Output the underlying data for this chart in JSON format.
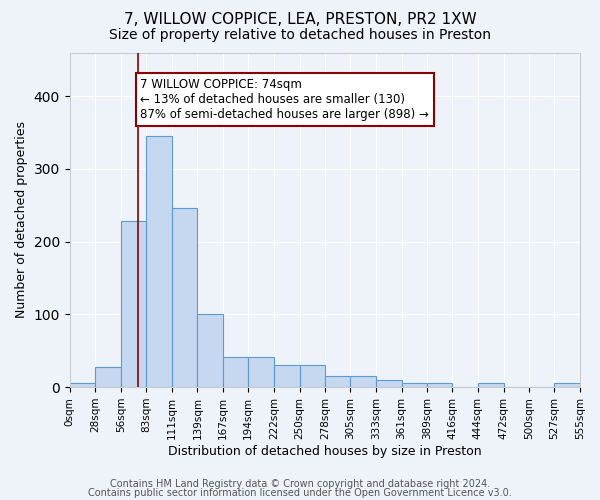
{
  "title1": "7, WILLOW COPPICE, LEA, PRESTON, PR2 1XW",
  "title2": "Size of property relative to detached houses in Preston",
  "xlabel": "Distribution of detached houses by size in Preston",
  "ylabel": "Number of detached properties",
  "bin_edges": [
    0,
    28,
    56,
    83,
    111,
    139,
    167,
    194,
    222,
    250,
    278,
    305,
    333,
    361,
    389,
    416,
    444,
    472,
    500,
    527,
    555
  ],
  "bar_heights": [
    5,
    28,
    228,
    345,
    246,
    100,
    42,
    42,
    30,
    30,
    15,
    15,
    10,
    5,
    5,
    0,
    5,
    0,
    0,
    5
  ],
  "bar_color": "#c5d8f0",
  "bar_edge_color": "#5b9bd5",
  "property_size": 74,
  "vline_color": "#8b0000",
  "annotation_line1": "7 WILLOW COPPICE: 74sqm",
  "annotation_line2": "← 13% of detached houses are smaller (130)",
  "annotation_line3": "87% of semi-detached houses are larger (898) →",
  "annotation_box_color": "white",
  "annotation_box_edge_color": "#8b0000",
  "ylim": [
    0,
    460
  ],
  "tick_labels": [
    "0sqm",
    "28sqm",
    "56sqm",
    "83sqm",
    "111sqm",
    "139sqm",
    "167sqm",
    "194sqm",
    "222sqm",
    "250sqm",
    "278sqm",
    "305sqm",
    "333sqm",
    "361sqm",
    "389sqm",
    "416sqm",
    "444sqm",
    "472sqm",
    "500sqm",
    "527sqm",
    "555sqm"
  ],
  "footer1": "Contains HM Land Registry data © Crown copyright and database right 2024.",
  "footer2": "Contains public sector information licensed under the Open Government Licence v3.0.",
  "background_color": "#eef2f9",
  "title1_fontsize": 11,
  "title2_fontsize": 10,
  "axis_label_fontsize": 9,
  "tick_fontsize": 7.5,
  "annotation_fontsize": 8.5,
  "footer_fontsize": 7
}
